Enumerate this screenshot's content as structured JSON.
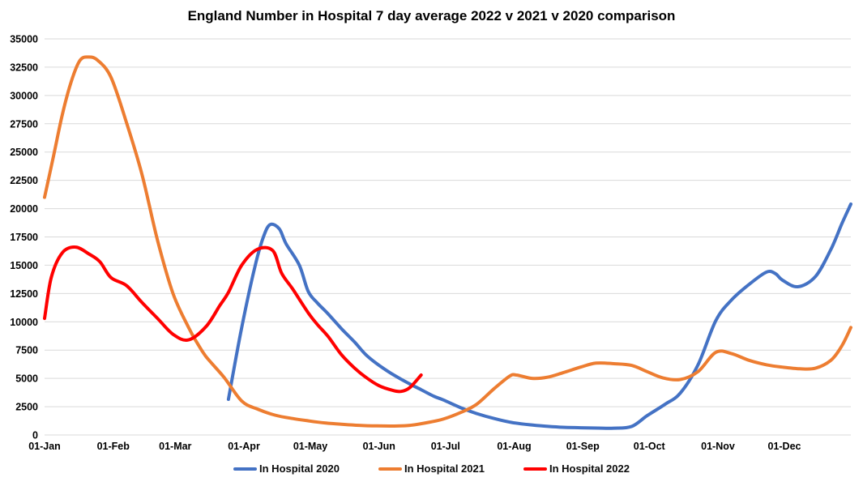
{
  "title": "England Number in Hospital 7 day average 2022 v 2021 v 2020 comparison",
  "legend": [
    {
      "label": "In Hospital 2020",
      "color": "#4472C4"
    },
    {
      "label": "In Hospital 2021",
      "color": "#ED7D31"
    },
    {
      "label": "In Hospital 2022",
      "color": "#FF0000"
    }
  ],
  "colors": {
    "series_2020": "#4472C4",
    "series_2021": "#ED7D31",
    "series_2022": "#FF0000",
    "gridline": "#D9D9D9",
    "text": "#000000",
    "background": "#FFFFFF"
  },
  "chart_data": {
    "type": "line",
    "title": "England Number in Hospital 7 day average 2022 v 2021 v 2020 comparison",
    "xlabel": "",
    "ylabel": "",
    "x_unit": "day-of-year",
    "x_range": [
      1,
      365
    ],
    "x_tick_labels": [
      "01-Jan",
      "01-Feb",
      "01-Mar",
      "01-Apr",
      "01-May",
      "01-Jun",
      "01-Jul",
      "01-Aug",
      "01-Sep",
      "01-Oct",
      "01-Nov",
      "01-Dec"
    ],
    "x_tick_days": [
      1,
      32,
      60,
      91,
      121,
      152,
      182,
      213,
      244,
      274,
      305,
      335
    ],
    "y_axis": {
      "min": 0,
      "max": 35000,
      "step": 2500
    },
    "y_tick_labels": [
      "0",
      "2500",
      "5000",
      "7500",
      "10000",
      "12500",
      "15000",
      "17500",
      "20000",
      "22500",
      "25000",
      "27500",
      "30000",
      "32500",
      "35000"
    ],
    "grid": "horizontal",
    "legend_position": "bottom",
    "series": [
      {
        "name": "In Hospital 2020",
        "color": "#4472C4",
        "points": [
          [
            84,
            3150
          ],
          [
            90,
            9500
          ],
          [
            96,
            14900
          ],
          [
            100,
            17600
          ],
          [
            103,
            18600
          ],
          [
            107,
            18200
          ],
          [
            110,
            16900
          ],
          [
            116,
            15000
          ],
          [
            120,
            12700
          ],
          [
            124,
            11700
          ],
          [
            129,
            10700
          ],
          [
            135,
            9400
          ],
          [
            141,
            8200
          ],
          [
            146,
            7100
          ],
          [
            151,
            6300
          ],
          [
            157,
            5500
          ],
          [
            164,
            4700
          ],
          [
            171,
            4000
          ],
          [
            177,
            3400
          ],
          [
            181,
            3100
          ],
          [
            189,
            2400
          ],
          [
            196,
            1900
          ],
          [
            204,
            1450
          ],
          [
            212,
            1100
          ],
          [
            220,
            900
          ],
          [
            227,
            780
          ],
          [
            235,
            680
          ],
          [
            243,
            640
          ],
          [
            251,
            610
          ],
          [
            258,
            600
          ],
          [
            266,
            750
          ],
          [
            273,
            1700
          ],
          [
            281,
            2700
          ],
          [
            288,
            3700
          ],
          [
            296,
            6200
          ],
          [
            304,
            10100
          ],
          [
            311,
            11900
          ],
          [
            319,
            13300
          ],
          [
            327,
            14400
          ],
          [
            331,
            14250
          ],
          [
            334,
            13700
          ],
          [
            341,
            13100
          ],
          [
            349,
            14000
          ],
          [
            356,
            16400
          ],
          [
            361,
            18700
          ],
          [
            365,
            20400
          ]
        ]
      },
      {
        "name": "In Hospital 2021",
        "color": "#ED7D31",
        "points": [
          [
            1,
            21000
          ],
          [
            5,
            24600
          ],
          [
            9,
            28300
          ],
          [
            13,
            31200
          ],
          [
            17,
            33100
          ],
          [
            21,
            33400
          ],
          [
            25,
            33100
          ],
          [
            31,
            31600
          ],
          [
            38,
            27600
          ],
          [
            45,
            23000
          ],
          [
            52,
            17200
          ],
          [
            59,
            12500
          ],
          [
            66,
            9500
          ],
          [
            70,
            8100
          ],
          [
            74,
            6900
          ],
          [
            82,
            5100
          ],
          [
            90,
            3000
          ],
          [
            97,
            2300
          ],
          [
            105,
            1750
          ],
          [
            113,
            1450
          ],
          [
            120,
            1250
          ],
          [
            128,
            1050
          ],
          [
            135,
            950
          ],
          [
            143,
            850
          ],
          [
            151,
            800
          ],
          [
            159,
            790
          ],
          [
            166,
            850
          ],
          [
            174,
            1100
          ],
          [
            181,
            1400
          ],
          [
            189,
            2000
          ],
          [
            196,
            2700
          ],
          [
            204,
            4100
          ],
          [
            211,
            5200
          ],
          [
            214,
            5300
          ],
          [
            221,
            5000
          ],
          [
            228,
            5100
          ],
          [
            235,
            5500
          ],
          [
            243,
            6000
          ],
          [
            250,
            6350
          ],
          [
            258,
            6300
          ],
          [
            266,
            6150
          ],
          [
            273,
            5600
          ],
          [
            280,
            5050
          ],
          [
            288,
            4900
          ],
          [
            296,
            5600
          ],
          [
            304,
            7300
          ],
          [
            311,
            7200
          ],
          [
            319,
            6600
          ],
          [
            327,
            6200
          ],
          [
            334,
            6000
          ],
          [
            342,
            5850
          ],
          [
            349,
            5900
          ],
          [
            356,
            6600
          ],
          [
            361,
            7900
          ],
          [
            365,
            9500
          ]
        ]
      },
      {
        "name": "In Hospital 2022",
        "color": "#FF0000",
        "points": [
          [
            1,
            10300
          ],
          [
            4,
            13900
          ],
          [
            9,
            16100
          ],
          [
            15,
            16600
          ],
          [
            21,
            16000
          ],
          [
            26,
            15300
          ],
          [
            31,
            13900
          ],
          [
            38,
            13200
          ],
          [
            45,
            11700
          ],
          [
            52,
            10300
          ],
          [
            59,
            8900
          ],
          [
            66,
            8400
          ],
          [
            74,
            9600
          ],
          [
            80,
            11400
          ],
          [
            84,
            12600
          ],
          [
            90,
            15000
          ],
          [
            97,
            16400
          ],
          [
            104,
            16300
          ],
          [
            108,
            14300
          ],
          [
            113,
            12900
          ],
          [
            120,
            10800
          ],
          [
            124,
            9800
          ],
          [
            129,
            8700
          ],
          [
            135,
            7100
          ],
          [
            141,
            5900
          ],
          [
            146,
            5100
          ],
          [
            152,
            4350
          ],
          [
            158,
            3950
          ],
          [
            162,
            3850
          ],
          [
            166,
            4200
          ],
          [
            171,
            5300
          ]
        ]
      }
    ]
  }
}
